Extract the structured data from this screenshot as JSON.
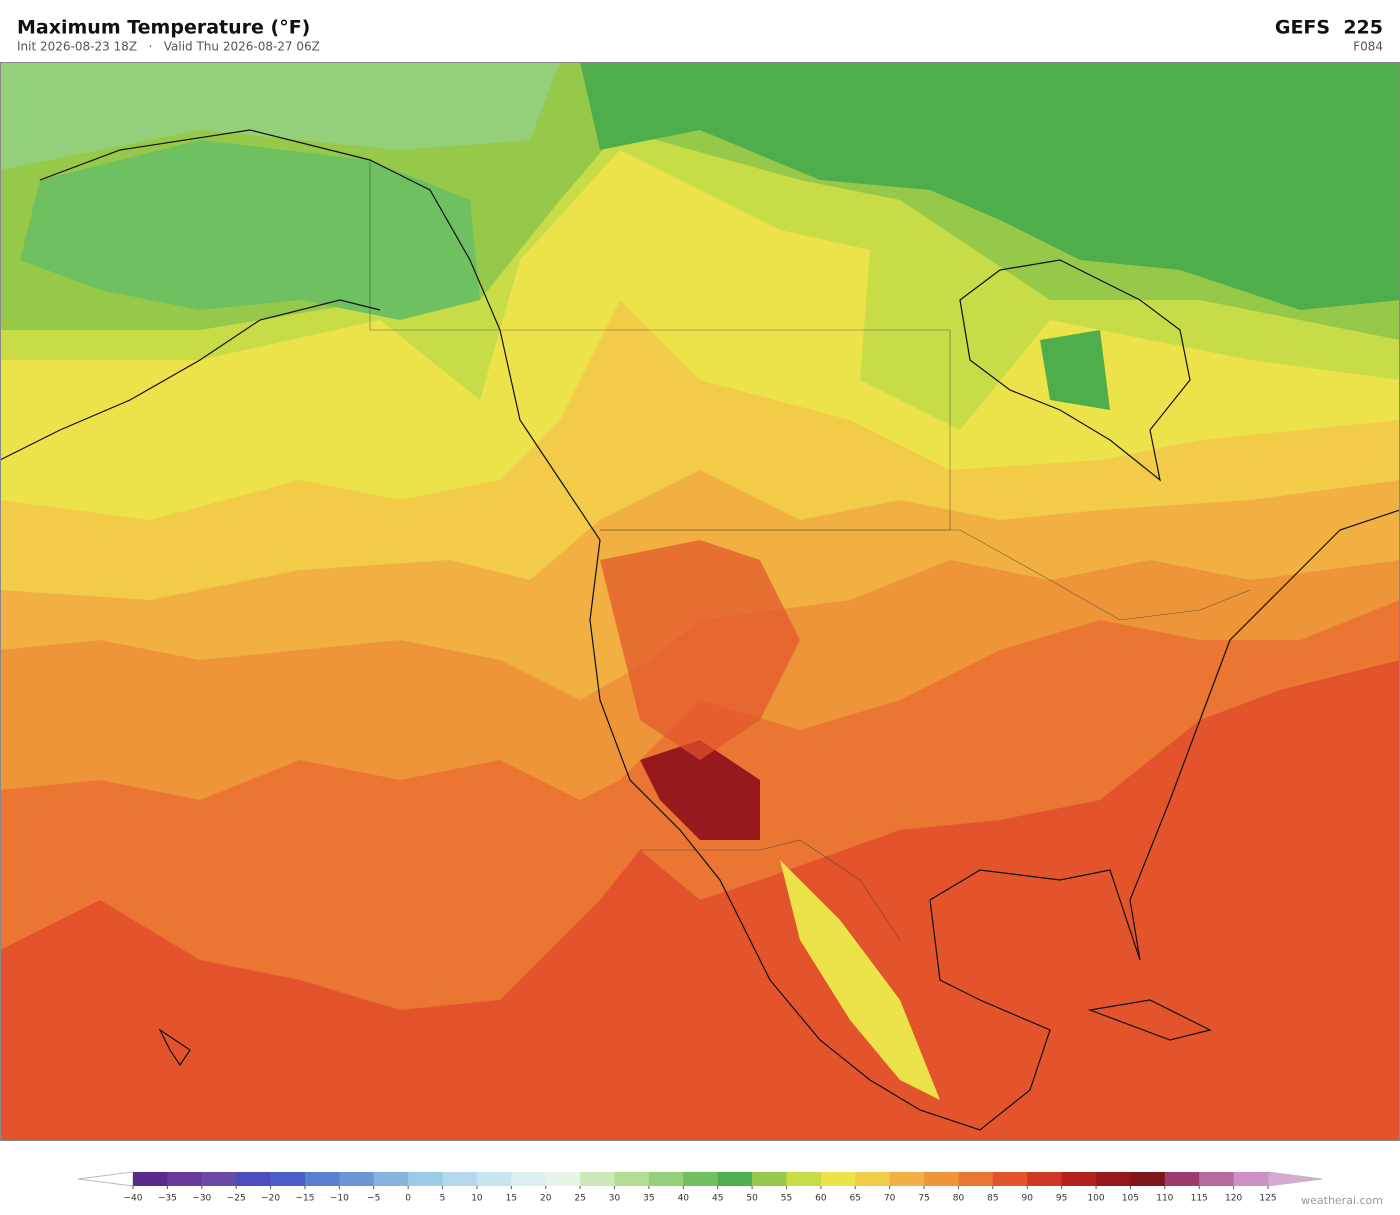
{
  "header": {
    "title": "Maximum Temperature  (°F)",
    "subtitle": "Init 2026-08-23 18Z   ·   Valid Thu 2026-08-27 06Z",
    "model": "GEFS  225",
    "forecast_hour": "F084"
  },
  "colorbar": {
    "ticks": [
      {
        "value": -40,
        "label": "−40"
      },
      {
        "value": -35,
        "label": "−35"
      },
      {
        "value": -30,
        "label": "−30"
      },
      {
        "value": -25,
        "label": "−25"
      },
      {
        "value": -20,
        "label": "−20"
      },
      {
        "value": -15,
        "label": "−15"
      },
      {
        "value": -10,
        "label": "−10"
      },
      {
        "value": -5,
        "label": "−5"
      },
      0,
      5,
      10,
      15,
      20,
      25,
      30,
      35,
      40,
      45,
      50,
      55,
      60,
      65,
      70,
      75,
      80,
      85,
      90,
      95,
      100,
      105,
      110,
      115,
      120,
      125
    ],
    "colors": [
      "#5a2a8c",
      "#6b3a9a",
      "#6a4aa8",
      "#4b4cc0",
      "#4a5fc8",
      "#5b7fd0",
      "#6d95d6",
      "#86b3e0",
      "#9ccbe8",
      "#b4d9ee",
      "#c8e4f0",
      "#daf0f0",
      "#e5f4e5",
      "#cde8b8",
      "#b2dc94",
      "#94d07a",
      "#6fc060",
      "#4fae4c",
      "#96c94a",
      "#c8dc48",
      "#ece34a",
      "#f2cc48",
      "#f1b041",
      "#ee953a",
      "#eb7634",
      "#e3542c",
      "#cf3726",
      "#b3221f",
      "#961a1d",
      "#7e151a",
      "#9a3c6e",
      "#b8699c",
      "#cc90c2"
    ],
    "extend_colors": [
      "#ffffff",
      "#d8a8d4"
    ]
  },
  "footer": {
    "credit": "weatherai.com"
  }
}
